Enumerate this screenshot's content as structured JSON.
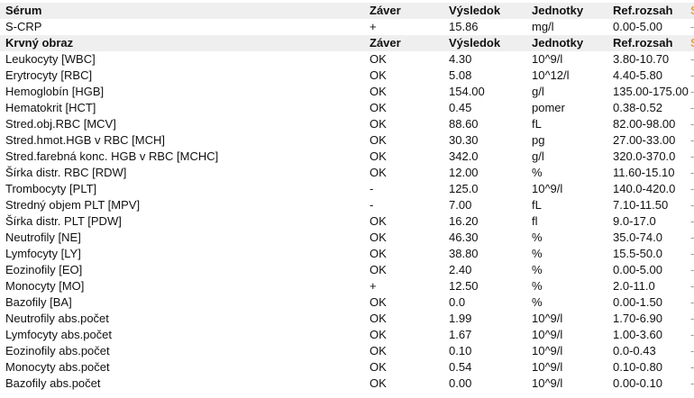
{
  "sections": [
    {
      "header": {
        "name": "Sérum",
        "conclusion": "Záver",
        "result": "Výsledok",
        "units": "Jednotky",
        "range": "Ref.rozsah",
        "extra": "S"
      },
      "rows": [
        {
          "name": "S-CRP",
          "conclusion": "+",
          "result": "15.86",
          "units": "mg/l",
          "range": "0.00-5.00",
          "extra": "-"
        }
      ]
    },
    {
      "header": {
        "name": "Krvný obraz",
        "conclusion": "Záver",
        "result": "Výsledok",
        "units": "Jednotky",
        "range": "Ref.rozsah",
        "extra": "S"
      },
      "rows": [
        {
          "name": "Leukocyty [WBC]",
          "conclusion": "OK",
          "result": "4.30",
          "units": "10^9/l",
          "range": "3.80-10.70",
          "extra": "-"
        },
        {
          "name": "Erytrocyty [RBC]",
          "conclusion": "OK",
          "result": "5.08",
          "units": "10^12/l",
          "range": "4.40-5.80",
          "extra": "-"
        },
        {
          "name": "Hemoglobín [HGB]",
          "conclusion": "OK",
          "result": "154.00",
          "units": "g/l",
          "range": "135.00-175.00",
          "extra": "-"
        },
        {
          "name": "Hematokrit [HCT]",
          "conclusion": "OK",
          "result": "0.45",
          "units": "pomer",
          "range": "0.38-0.52",
          "extra": "-"
        },
        {
          "name": "Stred.obj.RBC [MCV]",
          "conclusion": "OK",
          "result": "88.60",
          "units": "fL",
          "range": "82.00-98.00",
          "extra": "-"
        },
        {
          "name": "Stred.hmot.HGB v RBC [MCH]",
          "conclusion": "OK",
          "result": "30.30",
          "units": "pg",
          "range": "27.00-33.00",
          "extra": "-"
        },
        {
          "name": "Stred.farebná konc. HGB v RBC [MCHC]",
          "conclusion": "OK",
          "result": "342.0",
          "units": "g/l",
          "range": "320.0-370.0",
          "extra": "-"
        },
        {
          "name": "Šírka distr. RBC [RDW]",
          "conclusion": "OK",
          "result": "12.00",
          "units": "%",
          "range": "11.60-15.10",
          "extra": "-"
        },
        {
          "name": "Trombocyty [PLT]",
          "conclusion": "-",
          "result": "125.0",
          "units": "10^9/l",
          "range": "140.0-420.0",
          "extra": "-"
        },
        {
          "name": "Stredný objem PLT [MPV]",
          "conclusion": "-",
          "result": "7.00",
          "units": "fL",
          "range": "7.10-11.50",
          "extra": "-"
        },
        {
          "name": "Šírka distr. PLT [PDW]",
          "conclusion": "OK",
          "result": "16.20",
          "units": "fl",
          "range": "9.0-17.0",
          "extra": "-"
        },
        {
          "name": "Neutrofily [NE]",
          "conclusion": "OK",
          "result": "46.30",
          "units": "%",
          "range": "35.0-74.0",
          "extra": "-"
        },
        {
          "name": "Lymfocyty [LY]",
          "conclusion": "OK",
          "result": "38.80",
          "units": "%",
          "range": "15.5-50.0",
          "extra": "-"
        },
        {
          "name": "Eozinofily [EO]",
          "conclusion": "OK",
          "result": "2.40",
          "units": "%",
          "range": "0.00-5.00",
          "extra": "-"
        },
        {
          "name": "Monocyty [MO]",
          "conclusion": "+",
          "result": "12.50",
          "units": "%",
          "range": "2.0-11.0",
          "extra": "-"
        },
        {
          "name": "Bazofily [BA]",
          "conclusion": "OK",
          "result": "0.0",
          "units": "%",
          "range": "0.00-1.50",
          "extra": "-"
        },
        {
          "name": "Neutrofily abs.počet",
          "conclusion": "OK",
          "result": "1.99",
          "units": "10^9/l",
          "range": "1.70-6.90",
          "extra": "-"
        },
        {
          "name": "Lymfocyty abs.počet",
          "conclusion": "OK",
          "result": "1.67",
          "units": "10^9/l",
          "range": "1.00-3.60",
          "extra": "-"
        },
        {
          "name": "Eozinofily abs.počet",
          "conclusion": "OK",
          "result": "0.10",
          "units": "10^9/l",
          "range": "0.0-0.43",
          "extra": "-"
        },
        {
          "name": "Monocyty abs.počet",
          "conclusion": "OK",
          "result": "0.54",
          "units": "10^9/l",
          "range": "0.10-0.80",
          "extra": "-"
        },
        {
          "name": "Bazofily abs.počet",
          "conclusion": "OK",
          "result": "0.00",
          "units": "10^9/l",
          "range": "0.00-0.10",
          "extra": "-"
        }
      ]
    }
  ],
  "colors": {
    "header_bg": "#efefef",
    "cutoff_header": "#e8a040"
  }
}
